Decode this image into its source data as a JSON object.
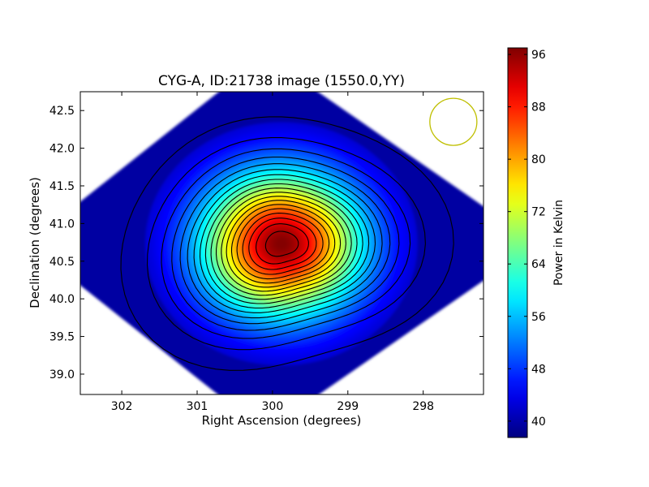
{
  "chart_data": {
    "type": "heatmap",
    "title": "CYG-A, ID:21738 image (1550.0,YY)",
    "xlabel": "Right Ascension (degrees)",
    "ylabel": "Declination (degrees)",
    "x_tick_labels": [
      "302",
      "301",
      "300",
      "299",
      "298"
    ],
    "x_ticks": [
      302,
      301,
      300,
      299,
      298
    ],
    "xlim": [
      302.55,
      297.2
    ],
    "y_tick_labels": [
      "39.0",
      "39.5",
      "40.0",
      "40.5",
      "41.0",
      "41.5",
      "42.0",
      "42.5"
    ],
    "y_ticks": [
      39.0,
      39.5,
      40.0,
      40.5,
      41.0,
      41.5,
      42.0,
      42.5
    ],
    "ylim": [
      38.73,
      42.75
    ],
    "colorbar": {
      "label": "Power in Kelvin",
      "tick_labels": [
        "40",
        "48",
        "56",
        "64",
        "72",
        "80",
        "88",
        "96"
      ],
      "ticks": [
        40,
        48,
        56,
        64,
        72,
        80,
        88,
        96
      ],
      "range": [
        37.5,
        97
      ],
      "colormap": "jet"
    },
    "peak": {
      "ra": 299.86,
      "dec": 40.73,
      "value": 97
    },
    "background_value": 39.5,
    "contour_levels": [
      41,
      44,
      47,
      50,
      53,
      56,
      59,
      62,
      65,
      68,
      71,
      74,
      77,
      80,
      83,
      86,
      89,
      92,
      95
    ],
    "beam_marker": {
      "ra": 297.6,
      "dec": 42.35,
      "color": "#bfbf00"
    },
    "grid": false
  }
}
